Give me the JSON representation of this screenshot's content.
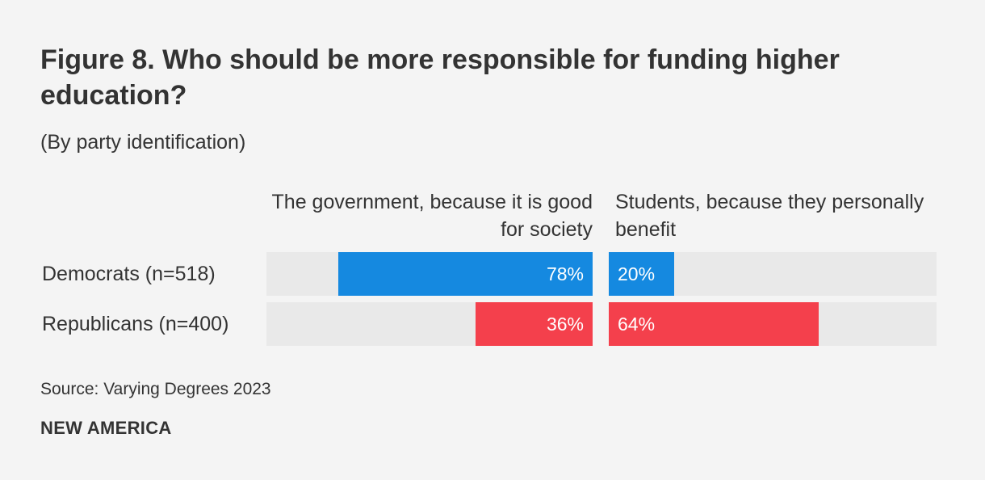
{
  "header": {
    "title": "Figure 8. Who should be more responsible for funding higher education?",
    "subtitle": "(By party identification)"
  },
  "footer": {
    "source": "Source: Varying Degrees 2023",
    "brand": "NEW AMERICA"
  },
  "colors": {
    "background": "#f4f4f4",
    "track": "#e9e9e9",
    "democrats": "#1589e0",
    "republicans": "#f4404c",
    "text": "#333333"
  },
  "chart_data": {
    "type": "bar",
    "orientation": "horizontal",
    "layout": "diverging",
    "title": "Figure 8. Who should be more responsible for funding higher education?",
    "subtitle": "(By party identification)",
    "categories": [
      "Democrats (n=518)",
      "Republicans (n=400)"
    ],
    "unit": "%",
    "xlim": [
      0,
      100
    ],
    "series": [
      {
        "name": "The government, because it is good for society",
        "values": [
          78,
          36
        ],
        "labels": [
          "78%",
          "36%"
        ]
      },
      {
        "name": "Students, because they personally benefit",
        "values": [
          20,
          64
        ],
        "labels": [
          "20%",
          "64%"
        ]
      }
    ],
    "row_colors": [
      "#1589e0",
      "#f4404c"
    ],
    "source": "Source: Varying Degrees 2023"
  }
}
